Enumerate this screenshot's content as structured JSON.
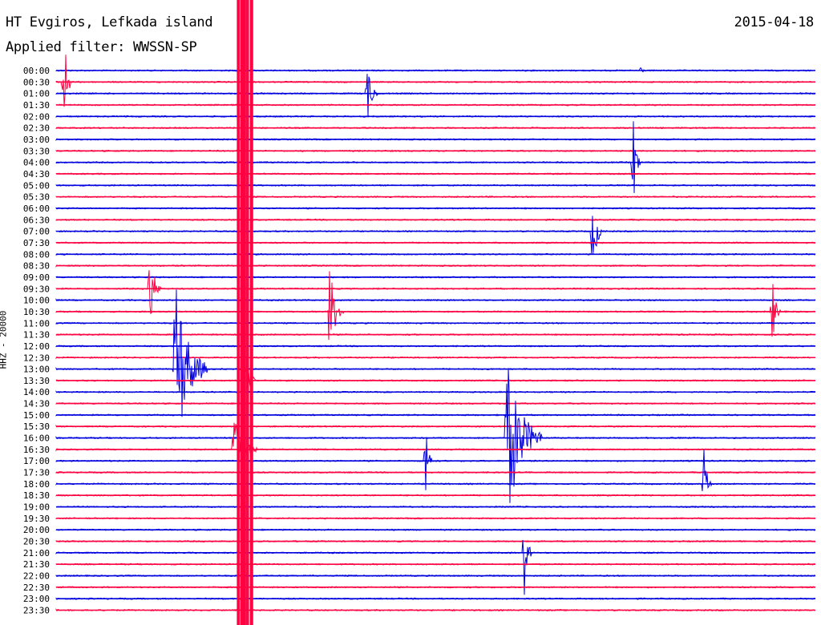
{
  "chart_data": {
    "type": "line",
    "title": "HT Evgiros, Lefkada island",
    "date": "2015-04-18",
    "subtitle": "Applied filter: WWSSN-SP",
    "ylabel": "HHZ - 20000",
    "tick_labels": [
      "00:00",
      "00:30",
      "01:00",
      "01:30",
      "02:00",
      "02:30",
      "03:00",
      "03:30",
      "04:00",
      "04:30",
      "05:00",
      "05:30",
      "06:00",
      "06:30",
      "07:00",
      "07:30",
      "08:00",
      "08:30",
      "09:00",
      "09:30",
      "10:00",
      "10:30",
      "11:00",
      "11:30",
      "12:00",
      "12:30",
      "13:00",
      "13:30",
      "14:00",
      "14:30",
      "15:00",
      "15:30",
      "16:00",
      "16:30",
      "17:00",
      "17:30",
      "18:00",
      "18:30",
      "19:00",
      "19:30",
      "20:00",
      "20:30",
      "21:00",
      "21:30",
      "22:00",
      "22:30",
      "23:00",
      "23:30"
    ],
    "x_unit": "minutes within 30-minute trace row",
    "xlim": [
      0,
      30
    ],
    "series_colors": [
      "#0000e0",
      "#ff0040"
    ],
    "grid": false,
    "events": [
      {
        "t": "00:00",
        "x": 23.1,
        "amp": 8,
        "dur": 6,
        "amp_unit": "px"
      },
      {
        "t": "01:00",
        "x": 12.3,
        "amp": 36,
        "dur": 14,
        "amp_unit": "px"
      },
      {
        "t": "00:30",
        "x": 0.3,
        "amp": 80,
        "dur": 10,
        "amp_unit": "px"
      },
      {
        "t": "16:30",
        "x": 7.0,
        "amp": 45,
        "dur": 30,
        "amp_unit": "px"
      },
      {
        "t": "13:00",
        "x": 4.7,
        "amp": 120,
        "dur": 40,
        "amp_unit": "px"
      },
      {
        "t": "16:00",
        "x": 17.8,
        "amp": 110,
        "dur": 45,
        "amp_unit": "px"
      },
      {
        "t": "09:30",
        "x": 3.7,
        "amp": 55,
        "dur": 14,
        "amp_unit": "px"
      },
      {
        "t": "10:30",
        "x": 10.8,
        "amp": 60,
        "dur": 18,
        "amp_unit": "px"
      },
      {
        "t": "13:30",
        "x": 7.5,
        "amp": 50,
        "dur": 12,
        "amp_unit": "px"
      },
      {
        "t": "17:00",
        "x": 14.6,
        "amp": 55,
        "dur": 10,
        "amp_unit": "px"
      },
      {
        "t": "18:00",
        "x": 25.6,
        "amp": 45,
        "dur": 10,
        "amp_unit": "px"
      },
      {
        "t": "21:00",
        "x": 18.5,
        "amp": 55,
        "dur": 10,
        "amp_unit": "px"
      },
      {
        "t": "04:00",
        "x": 22.8,
        "amp": 60,
        "dur": 10,
        "amp_unit": "px"
      },
      {
        "t": "07:00",
        "x": 21.2,
        "amp": 50,
        "dur": 14,
        "amp_unit": "px"
      },
      {
        "t": "10:30",
        "x": 28.3,
        "amp": 45,
        "dur": 10,
        "amp_unit": "px"
      }
    ]
  }
}
